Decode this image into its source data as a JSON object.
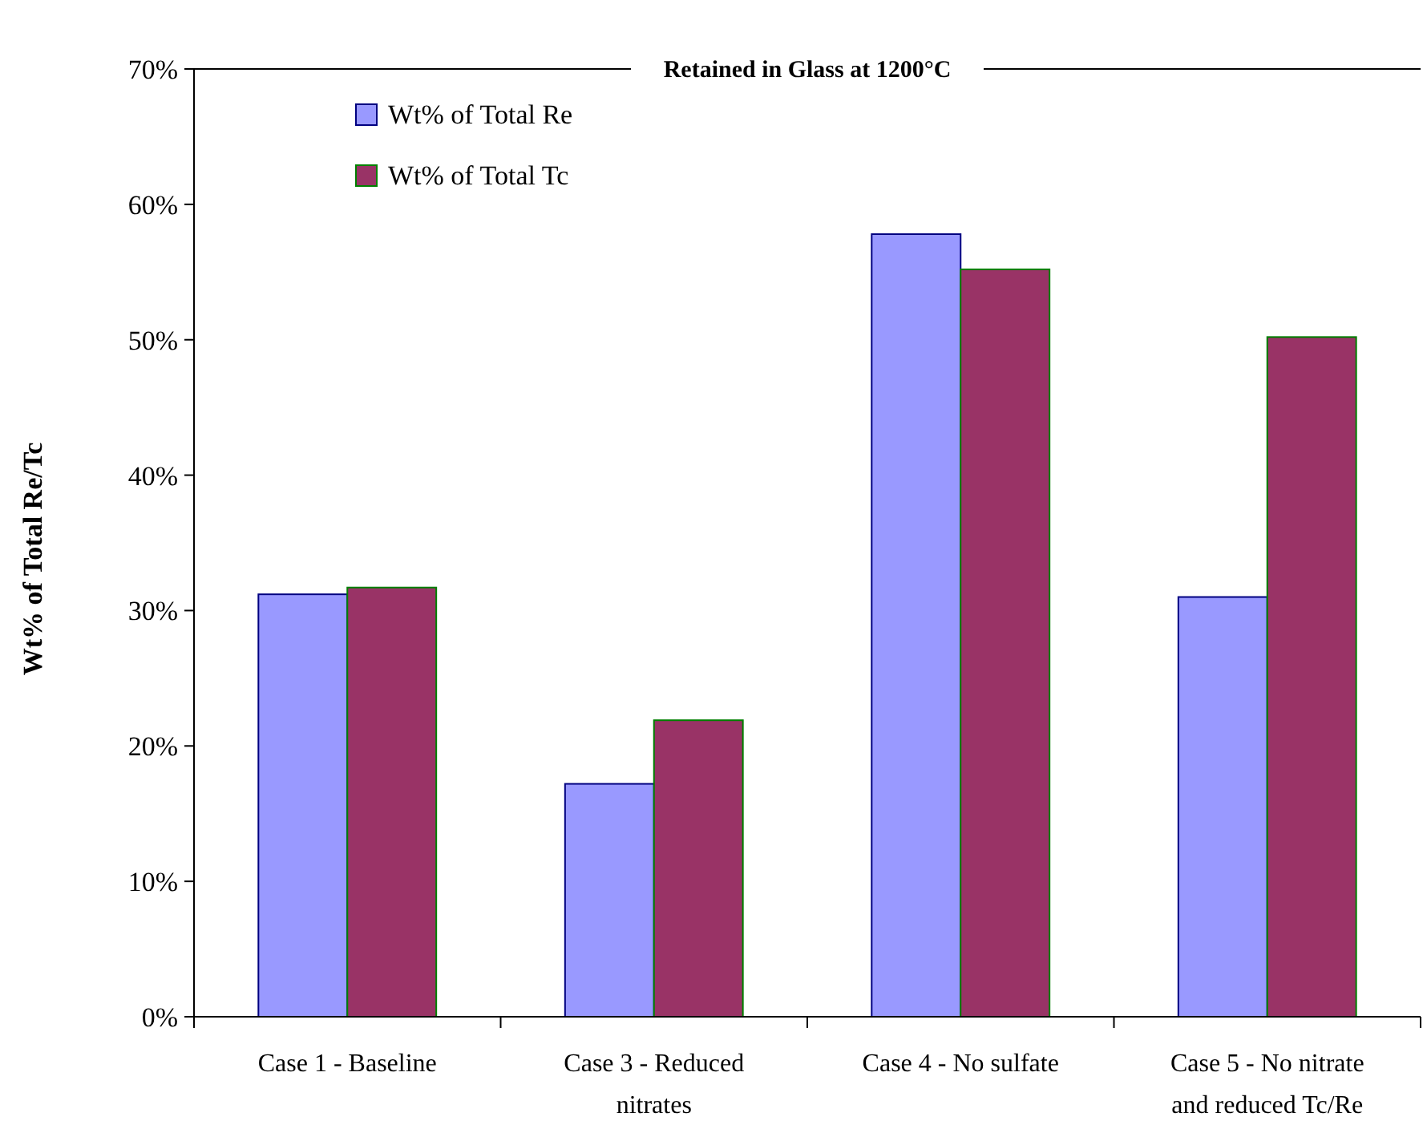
{
  "chart_data": {
    "type": "bar",
    "title": "Retained in Glass at 1200°C",
    "ylabel": "Wt% of Total Re/Tc",
    "categories": [
      "Case 1 - Baseline",
      "Case 3 - Reduced nitrates",
      "Case 4 - No sulfate",
      "Case 5 - No nitrate and reduced Tc/Re"
    ],
    "series": [
      {
        "name": "Wt% of Total Re",
        "color": "#9999ff",
        "values": [
          31.2,
          17.2,
          57.8,
          31.0
        ]
      },
      {
        "name": "Wt% of Total Tc",
        "color": "#993366",
        "values": [
          31.7,
          21.9,
          55.2,
          50.2
        ]
      }
    ],
    "ylim": [
      0,
      70
    ],
    "yticks": [
      {
        "value": 0,
        "label": "0%"
      },
      {
        "value": 10,
        "label": "10%"
      },
      {
        "value": 20,
        "label": "20%"
      },
      {
        "value": 30,
        "label": "30%"
      },
      {
        "value": 40,
        "label": "40%"
      },
      {
        "value": 50,
        "label": "50%"
      },
      {
        "value": 60,
        "label": "60%"
      },
      {
        "value": 70,
        "label": "70%"
      }
    ],
    "legend": "top left",
    "grid": false
  }
}
